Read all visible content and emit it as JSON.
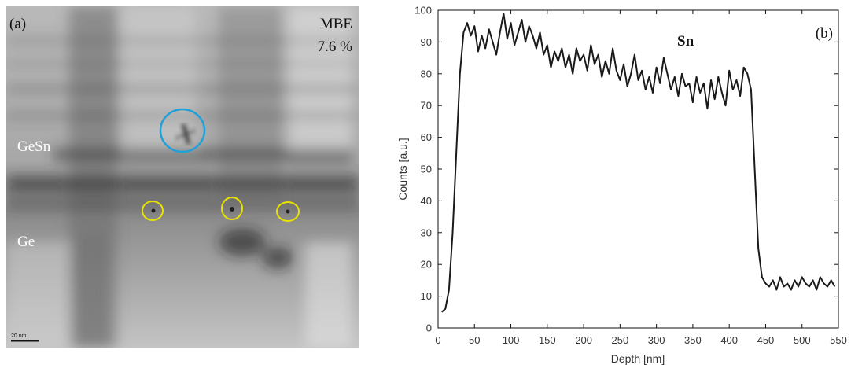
{
  "panel_a": {
    "label": "(a)",
    "method": "MBE",
    "concentration": "7.6 %",
    "layer_top": "GeSn",
    "layer_bottom": "Ge",
    "scale_bar": "20 nm",
    "colors": {
      "defect_large": "#1fa0d8",
      "defect_small": "#e8e200"
    }
  },
  "chart_data": {
    "type": "line",
    "panel_label": "(b)",
    "series_name": "Sn",
    "xlabel": "Depth [nm]",
    "ylabel": "Counts [a.u.]",
    "xlim": [
      0,
      550
    ],
    "ylim": [
      0,
      100
    ],
    "xticks": [
      0,
      50,
      100,
      150,
      200,
      250,
      300,
      350,
      400,
      450,
      500,
      550
    ],
    "yticks": [
      0,
      10,
      20,
      30,
      40,
      50,
      60,
      70,
      80,
      90,
      100
    ],
    "grid": false,
    "x": [
      5,
      10,
      15,
      20,
      25,
      30,
      35,
      40,
      45,
      50,
      55,
      60,
      65,
      70,
      75,
      80,
      85,
      90,
      95,
      100,
      105,
      110,
      115,
      120,
      125,
      130,
      135,
      140,
      145,
      150,
      155,
      160,
      165,
      170,
      175,
      180,
      185,
      190,
      195,
      200,
      205,
      210,
      215,
      220,
      225,
      230,
      235,
      240,
      245,
      250,
      255,
      260,
      265,
      270,
      275,
      280,
      285,
      290,
      295,
      300,
      305,
      310,
      315,
      320,
      325,
      330,
      335,
      340,
      345,
      350,
      355,
      360,
      365,
      370,
      375,
      380,
      385,
      390,
      395,
      400,
      405,
      410,
      415,
      420,
      425,
      430,
      435,
      440,
      445,
      450,
      455,
      460,
      465,
      470,
      475,
      480,
      485,
      490,
      495,
      500,
      505,
      510,
      515,
      520,
      525,
      530,
      535,
      540,
      545
    ],
    "y": [
      5,
      6,
      12,
      30,
      55,
      80,
      93,
      96,
      92,
      95,
      87,
      92,
      88,
      94,
      90,
      86,
      93,
      99,
      91,
      96,
      89,
      93,
      97,
      90,
      95,
      92,
      88,
      93,
      86,
      89,
      82,
      87,
      84,
      88,
      82,
      86,
      80,
      88,
      84,
      86,
      81,
      89,
      83,
      86,
      79,
      84,
      80,
      88,
      81,
      78,
      83,
      76,
      80,
      86,
      78,
      81,
      75,
      79,
      74,
      82,
      77,
      85,
      80,
      75,
      79,
      73,
      80,
      76,
      77,
      71,
      79,
      74,
      77,
      69,
      78,
      72,
      79,
      74,
      70,
      81,
      75,
      78,
      73,
      82,
      80,
      75,
      50,
      25,
      16,
      14,
      13,
      15,
      12,
      16,
      13,
      14,
      12,
      15,
      13,
      16,
      14,
      13,
      15,
      12,
      16,
      14,
      13,
      15,
      13
    ],
    "line_color": "#1a1a1a"
  }
}
